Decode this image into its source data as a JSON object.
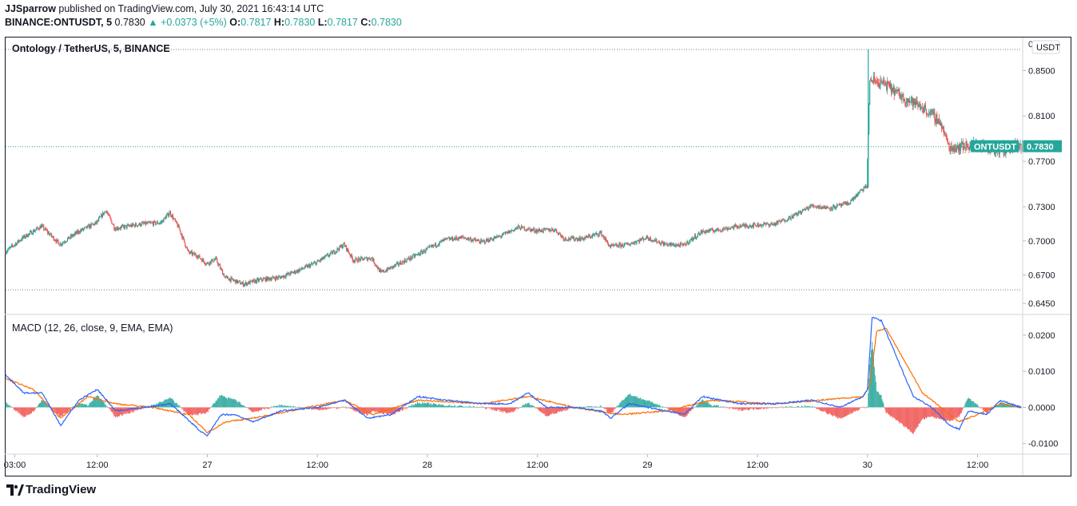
{
  "header": {
    "publisher": "JJSparrow",
    "published_text": "published on TradingView.com, July 30, 2021 16:43:14 UTC",
    "symbol": "BINANCE:ONTUSDT, 5",
    "last": "0.7830",
    "change": "+0.0373 (+5%)",
    "o_label": "O:",
    "o": "0.7817",
    "h_label": "H:",
    "h": "0.7830",
    "l_label": "L:",
    "l": "0.7817",
    "c_label": "C:",
    "c": "0.7830"
  },
  "colors": {
    "up": "#26a69a",
    "down": "#ef5350",
    "macd": "#2962ff",
    "signal": "#ff6d00",
    "hist_up": "#26a69a",
    "hist_down": "#ef5350"
  },
  "chart_data": [
    {
      "type": "candlestick",
      "title": "Ontology / TetherUS, 5, BINANCE",
      "currency_label": "USDT",
      "price_tag": {
        "label": "ONTUSDT",
        "value": "0.7830",
        "y": 0.783
      },
      "ylim": [
        0.636,
        0.879
      ],
      "yticks": [
        "0.8500",
        "0.8100",
        "0.7700",
        "0.7300",
        "0.7000",
        "0.6700",
        "0.6450"
      ],
      "ytick_values": [
        0.85,
        0.81,
        0.77,
        0.73,
        0.7,
        0.67,
        0.645
      ],
      "ytick_top_partial": "0",
      "dotted_levels": [
        0.8685,
        0.783,
        0.657
      ],
      "x_labels": [
        "03:00",
        "12:00",
        "27",
        "12:00",
        "28",
        "12:00",
        "29",
        "12:00",
        "30",
        "12:00"
      ],
      "x_label_times": [
        "Jul 26 03:00",
        "Jul 26 12:00",
        "Jul 27",
        "Jul 27 12:00",
        "Jul 28",
        "Jul 28 12:00",
        "Jul 29",
        "Jul 29 12:00",
        "Jul 30",
        "Jul 30 12:00"
      ],
      "x_range": [
        "Jul 26 02:00",
        "Jul 30 16:45"
      ],
      "interval_minutes": 5,
      "price_path": [
        [
          "Jul 26 02:00",
          0.69
        ],
        [
          "Jul 26 04:00",
          0.703
        ],
        [
          "Jul 26 06:00",
          0.713
        ],
        [
          "Jul 26 08:00",
          0.697
        ],
        [
          "Jul 26 10:00",
          0.708
        ],
        [
          "Jul 26 12:00",
          0.716
        ],
        [
          "Jul 26 13:00",
          0.727
        ],
        [
          "Jul 26 14:00",
          0.711
        ],
        [
          "Jul 26 17:00",
          0.715
        ],
        [
          "Jul 26 19:00",
          0.716
        ],
        [
          "Jul 26 20:00",
          0.725
        ],
        [
          "Jul 26 21:00",
          0.711
        ],
        [
          "Jul 26 22:00",
          0.69
        ],
        [
          "Jul 26 23:00",
          0.687
        ],
        [
          "Jul 27 00:00",
          0.68
        ],
        [
          "Jul 27 01:00",
          0.684
        ],
        [
          "Jul 27 02:00",
          0.668
        ],
        [
          "Jul 27 04:00",
          0.662
        ],
        [
          "Jul 27 06:00",
          0.666
        ],
        [
          "Jul 27 08:00",
          0.668
        ],
        [
          "Jul 27 10:00",
          0.674
        ],
        [
          "Jul 27 12:00",
          0.681
        ],
        [
          "Jul 27 14:00",
          0.691
        ],
        [
          "Jul 27 15:00",
          0.697
        ],
        [
          "Jul 27 16:00",
          0.683
        ],
        [
          "Jul 27 18:00",
          0.685
        ],
        [
          "Jul 27 19:00",
          0.672
        ],
        [
          "Jul 27 21:00",
          0.68
        ],
        [
          "Jul 27 23:00",
          0.688
        ],
        [
          "Jul 28 02:00",
          0.701
        ],
        [
          "Jul 28 04:00",
          0.703
        ],
        [
          "Jul 28 06:00",
          0.699
        ],
        [
          "Jul 28 08:00",
          0.704
        ],
        [
          "Jul 28 10:00",
          0.712
        ],
        [
          "Jul 28 12:00",
          0.709
        ],
        [
          "Jul 28 14:00",
          0.71
        ],
        [
          "Jul 28 15:00",
          0.702
        ],
        [
          "Jul 28 17:00",
          0.702
        ],
        [
          "Jul 28 19:00",
          0.707
        ],
        [
          "Jul 28 20:00",
          0.695
        ],
        [
          "Jul 28 22:00",
          0.697
        ],
        [
          "Jul 29 00:00",
          0.703
        ],
        [
          "Jul 29 02:00",
          0.697
        ],
        [
          "Jul 29 04:00",
          0.696
        ],
        [
          "Jul 29 06:00",
          0.708
        ],
        [
          "Jul 29 08:00",
          0.71
        ],
        [
          "Jul 29 10:00",
          0.713
        ],
        [
          "Jul 29 12:00",
          0.714
        ],
        [
          "Jul 29 14:00",
          0.715
        ],
        [
          "Jul 29 16:00",
          0.722
        ],
        [
          "Jul 29 18:00",
          0.731
        ],
        [
          "Jul 29 20:00",
          0.729
        ],
        [
          "Jul 29 22:00",
          0.733
        ],
        [
          "Jul 29 23:30",
          0.745
        ],
        [
          "Jul 30 00:00",
          0.748
        ],
        [
          "Jul 30 00:20",
          0.842
        ],
        [
          "Jul 30 02:00",
          0.838
        ],
        [
          "Jul 30 04:00",
          0.826
        ],
        [
          "Jul 30 06:00",
          0.818
        ],
        [
          "Jul 30 08:00",
          0.805
        ],
        [
          "Jul 30 09:00",
          0.782
        ],
        [
          "Jul 30 10:00",
          0.783
        ],
        [
          "Jul 30 12:00",
          0.785
        ],
        [
          "Jul 30 14:00",
          0.78
        ],
        [
          "Jul 30 16:45",
          0.783
        ]
      ]
    },
    {
      "type": "line",
      "title": "MACD (12, 26, close, 9, EMA, EMA)",
      "ylim": [
        -0.0125,
        0.0255
      ],
      "yticks": [
        "0.0200",
        "0.0100",
        "0.0000",
        "-0.0100"
      ],
      "ytick_values": [
        0.02,
        0.01,
        0.0,
        -0.01
      ],
      "series": [
        {
          "key": "macd"
        },
        {
          "key": "signal"
        },
        {
          "key": "histogram"
        }
      ],
      "macd_path": [
        [
          "Jul 26 02:00",
          0.009
        ],
        [
          "Jul 26 04:00",
          0.004
        ],
        [
          "Jul 26 06:00",
          0.004
        ],
        [
          "Jul 26 08:00",
          -0.005
        ],
        [
          "Jul 26 10:00",
          0.002
        ],
        [
          "Jul 26 12:00",
          0.005
        ],
        [
          "Jul 26 14:00",
          -0.001
        ],
        [
          "Jul 26 17:00",
          0.0
        ],
        [
          "Jul 26 20:00",
          0.001
        ],
        [
          "Jul 26 23:00",
          -0.006
        ],
        [
          "Jul 27 00:00",
          -0.008
        ],
        [
          "Jul 27 01:30",
          -0.002
        ],
        [
          "Jul 27 03:00",
          -0.002
        ],
        [
          "Jul 27 05:00",
          -0.004
        ],
        [
          "Jul 27 08:00",
          -0.001
        ],
        [
          "Jul 27 12:00",
          0.0
        ],
        [
          "Jul 27 15:00",
          0.002
        ],
        [
          "Jul 27 17:30",
          -0.003
        ],
        [
          "Jul 27 20:00",
          -0.002
        ],
        [
          "Jul 27 23:00",
          0.003
        ],
        [
          "Jul 28 02:00",
          0.002
        ],
        [
          "Jul 28 06:00",
          0.001
        ],
        [
          "Jul 28 09:00",
          0.001
        ],
        [
          "Jul 28 11:00",
          0.004
        ],
        [
          "Jul 28 13:00",
          0.0
        ],
        [
          "Jul 28 16:00",
          0.0
        ],
        [
          "Jul 28 19:00",
          -0.001
        ],
        [
          "Jul 28 20:00",
          -0.003
        ],
        [
          "Jul 28 22:00",
          0.001
        ],
        [
          "Jul 29 00:00",
          0.0
        ],
        [
          "Jul 29 04:00",
          -0.002
        ],
        [
          "Jul 29 06:00",
          0.003
        ],
        [
          "Jul 29 10:00",
          0.001
        ],
        [
          "Jul 29 14:00",
          0.001
        ],
        [
          "Jul 29 18:00",
          0.002
        ],
        [
          "Jul 29 21:00",
          0.0
        ],
        [
          "Jul 29 23:30",
          0.003
        ],
        [
          "Jul 30 00:00",
          0.005
        ],
        [
          "Jul 30 00:30",
          0.025
        ],
        [
          "Jul 30 01:30",
          0.024
        ],
        [
          "Jul 30 03:00",
          0.015
        ],
        [
          "Jul 30 05:00",
          0.003
        ],
        [
          "Jul 30 07:00",
          0.0
        ],
        [
          "Jul 30 09:00",
          -0.005
        ],
        [
          "Jul 30 10:00",
          -0.006
        ],
        [
          "Jul 30 11:00",
          -0.001
        ],
        [
          "Jul 30 13:00",
          -0.002
        ],
        [
          "Jul 30 14:30",
          0.002
        ],
        [
          "Jul 30 16:45",
          0.0
        ]
      ],
      "signal_path": [
        [
          "Jul 26 02:00",
          0.008
        ],
        [
          "Jul 26 05:00",
          0.005
        ],
        [
          "Jul 26 08:00",
          -0.003
        ],
        [
          "Jul 26 11:00",
          0.003
        ],
        [
          "Jul 26 14:00",
          0.001
        ],
        [
          "Jul 26 18:00",
          0.0
        ],
        [
          "Jul 26 22:00",
          -0.002
        ],
        [
          "Jul 27 00:00",
          -0.007
        ],
        [
          "Jul 27 02:00",
          -0.004
        ],
        [
          "Jul 27 05:00",
          -0.003
        ],
        [
          "Jul 27 09:00",
          -0.001
        ],
        [
          "Jul 27 15:00",
          0.002
        ],
        [
          "Jul 27 18:00",
          -0.002
        ],
        [
          "Jul 27 23:00",
          0.002
        ],
        [
          "Jul 28 06:00",
          0.001
        ],
        [
          "Jul 28 11:00",
          0.003
        ],
        [
          "Jul 28 16:00",
          0.0
        ],
        [
          "Jul 28 21:00",
          -0.002
        ],
        [
          "Jul 29 02:00",
          -0.001
        ],
        [
          "Jul 29 07:00",
          0.002
        ],
        [
          "Jul 29 14:00",
          0.001
        ],
        [
          "Jul 29 19:00",
          0.002
        ],
        [
          "Jul 29 23:30",
          0.003
        ],
        [
          "Jul 30 00:15",
          0.006
        ],
        [
          "Jul 30 01:00",
          0.021
        ],
        [
          "Jul 30 02:00",
          0.022
        ],
        [
          "Jul 30 04:00",
          0.013
        ],
        [
          "Jul 30 06:00",
          0.004
        ],
        [
          "Jul 30 08:00",
          0.0
        ],
        [
          "Jul 30 10:00",
          -0.004
        ],
        [
          "Jul 30 12:00",
          -0.002
        ],
        [
          "Jul 30 14:30",
          0.001
        ],
        [
          "Jul 30 16:45",
          0.0
        ]
      ]
    }
  ],
  "brand": "TradingView"
}
